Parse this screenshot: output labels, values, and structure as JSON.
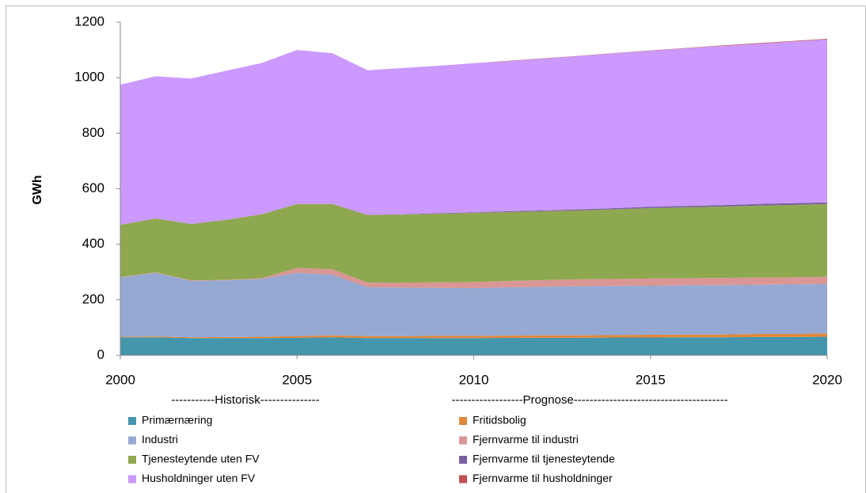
{
  "chart_data": {
    "type": "stacked-area",
    "y_label": "GWh",
    "annotations": [
      "-----------Historisk---------------",
      "------------------Prognose---------------------------------------"
    ],
    "x": [
      2000,
      2001,
      2002,
      2003,
      2004,
      2005,
      2006,
      2007,
      2008,
      2009,
      2010,
      2011,
      2012,
      2013,
      2014,
      2015,
      2016,
      2017,
      2018,
      2019,
      2020
    ],
    "xlim": [
      2000,
      2020
    ],
    "xticks": [
      2000,
      2005,
      2010,
      2015,
      2020
    ],
    "ylim": [
      0,
      1200
    ],
    "yticks": [
      0,
      200,
      400,
      600,
      800,
      1000,
      1200
    ],
    "grid": false,
    "series": [
      {
        "name": "Primærnæring",
        "color": "#4396ac",
        "values": [
          65,
          65,
          62,
          62,
          62,
          63,
          65,
          62,
          62,
          62,
          62,
          63,
          63,
          63,
          64,
          64,
          65,
          65,
          66,
          66,
          67
        ]
      },
      {
        "name": "Fritidsbolig",
        "color": "#e0873a",
        "values": [
          2,
          3,
          3,
          4,
          5,
          6,
          7,
          7,
          7,
          8,
          8,
          8,
          9,
          9,
          9,
          10,
          10,
          10,
          11,
          11,
          12
        ]
      },
      {
        "name": "Industri",
        "color": "#95a9d2",
        "values": [
          213,
          229,
          203,
          204,
          208,
          228,
          218,
          176,
          175,
          173,
          172,
          174,
          175,
          177,
          177,
          177,
          177,
          178,
          177,
          178,
          178
        ]
      },
      {
        "name": "Fjernvarme til industri",
        "color": "#d99694",
        "values": [
          2,
          2,
          2,
          2,
          3,
          18,
          20,
          17,
          18,
          20,
          22,
          23,
          24,
          25,
          25,
          26,
          26,
          26,
          26,
          26,
          26
        ]
      },
      {
        "name": "Tjenesteytende uten FV",
        "color": "#8ea84f",
        "values": [
          188,
          194,
          203,
          216,
          230,
          230,
          235,
          243,
          245,
          247,
          249,
          248,
          248,
          248,
          251,
          253,
          255,
          257,
          259,
          261,
          262
        ]
      },
      {
        "name": "Fjernvarme til tjenesteytende",
        "color": "#7a5fa0",
        "values": [
          0,
          0,
          0,
          0,
          0,
          0,
          0,
          1,
          1,
          2,
          2,
          3,
          3,
          4,
          4,
          5,
          5,
          5,
          6,
          6,
          6
        ]
      },
      {
        "name": "Husholdninger uten FV",
        "color": "#cc99ff",
        "values": [
          505,
          512,
          524,
          537,
          545,
          555,
          543,
          521,
          527,
          531,
          537,
          541,
          547,
          552,
          558,
          562,
          568,
          573,
          577,
          582,
          587
        ]
      },
      {
        "name": "Fjernvarme til husholdninger",
        "color": "#c0504d",
        "values": [
          0,
          0,
          0,
          0,
          0,
          0,
          0,
          0,
          0,
          0,
          0,
          1,
          1,
          1,
          1,
          1,
          1,
          2,
          2,
          2,
          2
        ]
      }
    ]
  }
}
